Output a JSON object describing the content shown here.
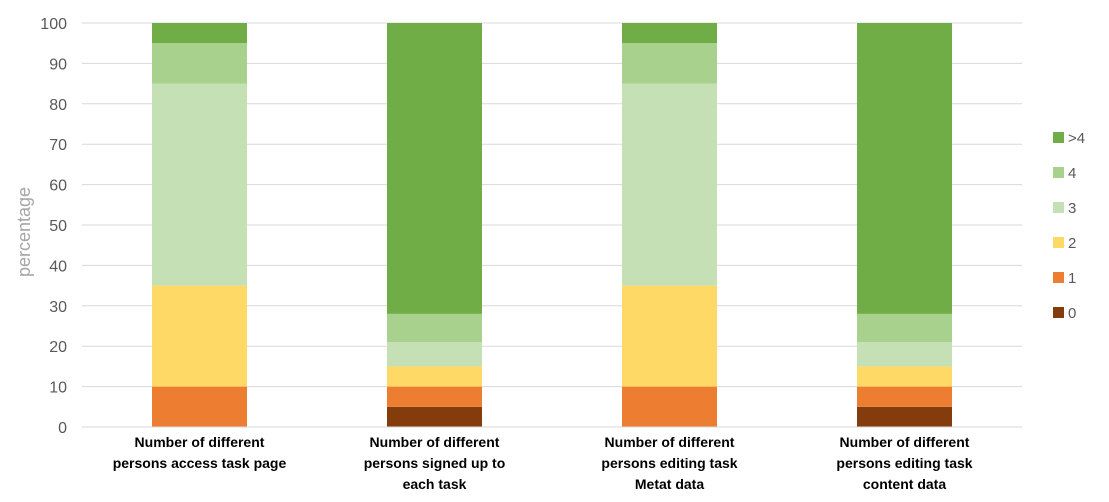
{
  "chart_data": {
    "type": "bar",
    "stacked": true,
    "title": "",
    "xlabel": "",
    "ylabel": "percentage",
    "ylim": [
      0,
      100
    ],
    "yticks": [
      0,
      10,
      20,
      30,
      40,
      50,
      60,
      70,
      80,
      90,
      100
    ],
    "grid": true,
    "legend_position": "right",
    "categories": [
      [
        "Number of different",
        "persons access task page"
      ],
      [
        "Number of different",
        "persons signed up to",
        "each task"
      ],
      [
        "Number of different",
        "persons editing task",
        "Metat data"
      ],
      [
        "Number of different",
        "persons editing task",
        "content data"
      ]
    ],
    "series": [
      {
        "name": "0",
        "color": "#843c0c",
        "values": [
          0,
          5,
          0,
          5
        ]
      },
      {
        "name": "1",
        "color": "#ed7d31",
        "values": [
          10,
          5,
          10,
          5
        ]
      },
      {
        "name": "2",
        "color": "#ffd966",
        "values": [
          25,
          5,
          25,
          5
        ]
      },
      {
        "name": "3",
        "color": "#c5e0b4",
        "values": [
          50,
          6,
          50,
          6
        ]
      },
      {
        "name": "4",
        "color": "#a9d18e",
        "values": [
          10,
          7,
          10,
          7
        ]
      },
      {
        "name": ">4",
        "color": "#70ad47",
        "values": [
          5,
          72,
          5,
          72
        ]
      }
    ]
  }
}
